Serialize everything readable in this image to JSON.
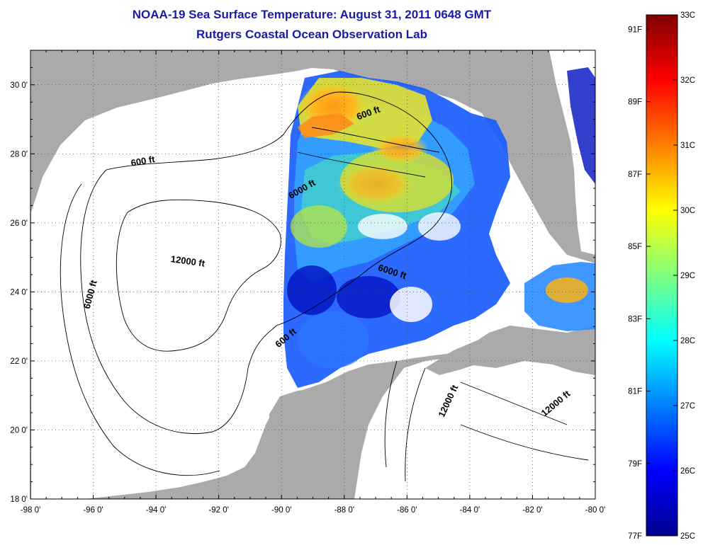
{
  "title": {
    "line1": "NOAA-19 Sea Surface Temperature:  August 31, 2011 0648 GMT",
    "line2": "Rutgers Coastal Ocean Observation Lab"
  },
  "map": {
    "lon_range": [
      -98,
      -80
    ],
    "lat_range": [
      18,
      31
    ],
    "lon_ticks": [
      {
        "value": -98,
        "label": "-98 0'"
      },
      {
        "value": -96,
        "label": "-96 0'"
      },
      {
        "value": -94,
        "label": "-94 0'"
      },
      {
        "value": -92,
        "label": "-92 0'"
      },
      {
        "value": -90,
        "label": "-90 0'"
      },
      {
        "value": -88,
        "label": "-88 0'"
      },
      {
        "value": -86,
        "label": "-86 0'"
      },
      {
        "value": -84,
        "label": "-84 0'"
      },
      {
        "value": -82,
        "label": "-82 0'"
      },
      {
        "value": -80,
        "label": "-80 0'"
      }
    ],
    "lat_ticks": [
      {
        "value": 18,
        "label": "18 0'"
      },
      {
        "value": 20,
        "label": "20 0'"
      },
      {
        "value": 22,
        "label": "22 0'"
      },
      {
        "value": 24,
        "label": "24 0'"
      },
      {
        "value": 26,
        "label": "26 0'"
      },
      {
        "value": 28,
        "label": "28 0'"
      },
      {
        "value": 30,
        "label": "30 0'"
      }
    ],
    "grid": true,
    "colors": {
      "land": "#aaaaaa",
      "ocean": "#ffffff",
      "grid": "#444444",
      "contour": "#000000"
    },
    "contour_labels": [
      {
        "text": "600 ft",
        "lon": -87.2,
        "lat": 29.1
      },
      {
        "text": "600 ft",
        "lon": -94.4,
        "lat": 27.7
      },
      {
        "text": "6000 ft",
        "lon": -89.3,
        "lat": 26.9
      },
      {
        "text": "6000 ft",
        "lon": -96.0,
        "lat": 23.9
      },
      {
        "text": "12000 ft",
        "lon": -93.0,
        "lat": 24.8
      },
      {
        "text": "6000 ft",
        "lon": -86.5,
        "lat": 24.5
      },
      {
        "text": "600 ft",
        "lon": -89.8,
        "lat": 22.6
      },
      {
        "text": "12000 ft",
        "lon": -84.6,
        "lat": 20.8
      },
      {
        "text": "12000 ft",
        "lon": -81.2,
        "lat": 20.7
      }
    ]
  },
  "colorbar": {
    "min_c": 25,
    "max_c": 33,
    "celsius_labels": [
      "33C",
      "32C",
      "31C",
      "30C",
      "29C",
      "28C",
      "27C",
      "26C",
      "25C"
    ],
    "fahrenheit_labels": [
      "91F",
      "89F",
      "87F",
      "85F",
      "83F",
      "81F",
      "79F",
      "77F"
    ],
    "colormap": [
      "#00008f",
      "#0000ff",
      "#007fff",
      "#00ffff",
      "#7fff7f",
      "#ffff00",
      "#ff7f00",
      "#ff0000",
      "#7f0000"
    ]
  }
}
